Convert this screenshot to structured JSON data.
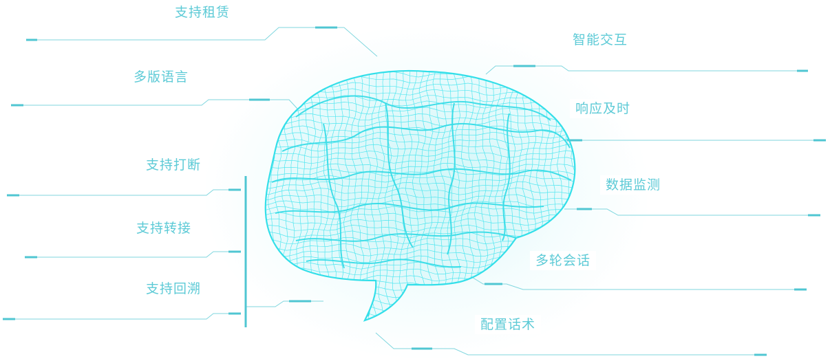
{
  "colors": {
    "accent": "#5ccad6",
    "line": "#6fd3dc",
    "brain": "#38e3ee",
    "bar": "#4fc6d2"
  },
  "labels": {
    "rental": "支持租赁",
    "multilang": "多版语言",
    "interrupt": "支持打断",
    "transfer": "支持转接",
    "rollback": "支持回溯",
    "interaction": "智能交互",
    "response": "响应及时",
    "monitoring": "数据监测",
    "multiturn": "多轮会话",
    "scripts": "配置话术"
  }
}
